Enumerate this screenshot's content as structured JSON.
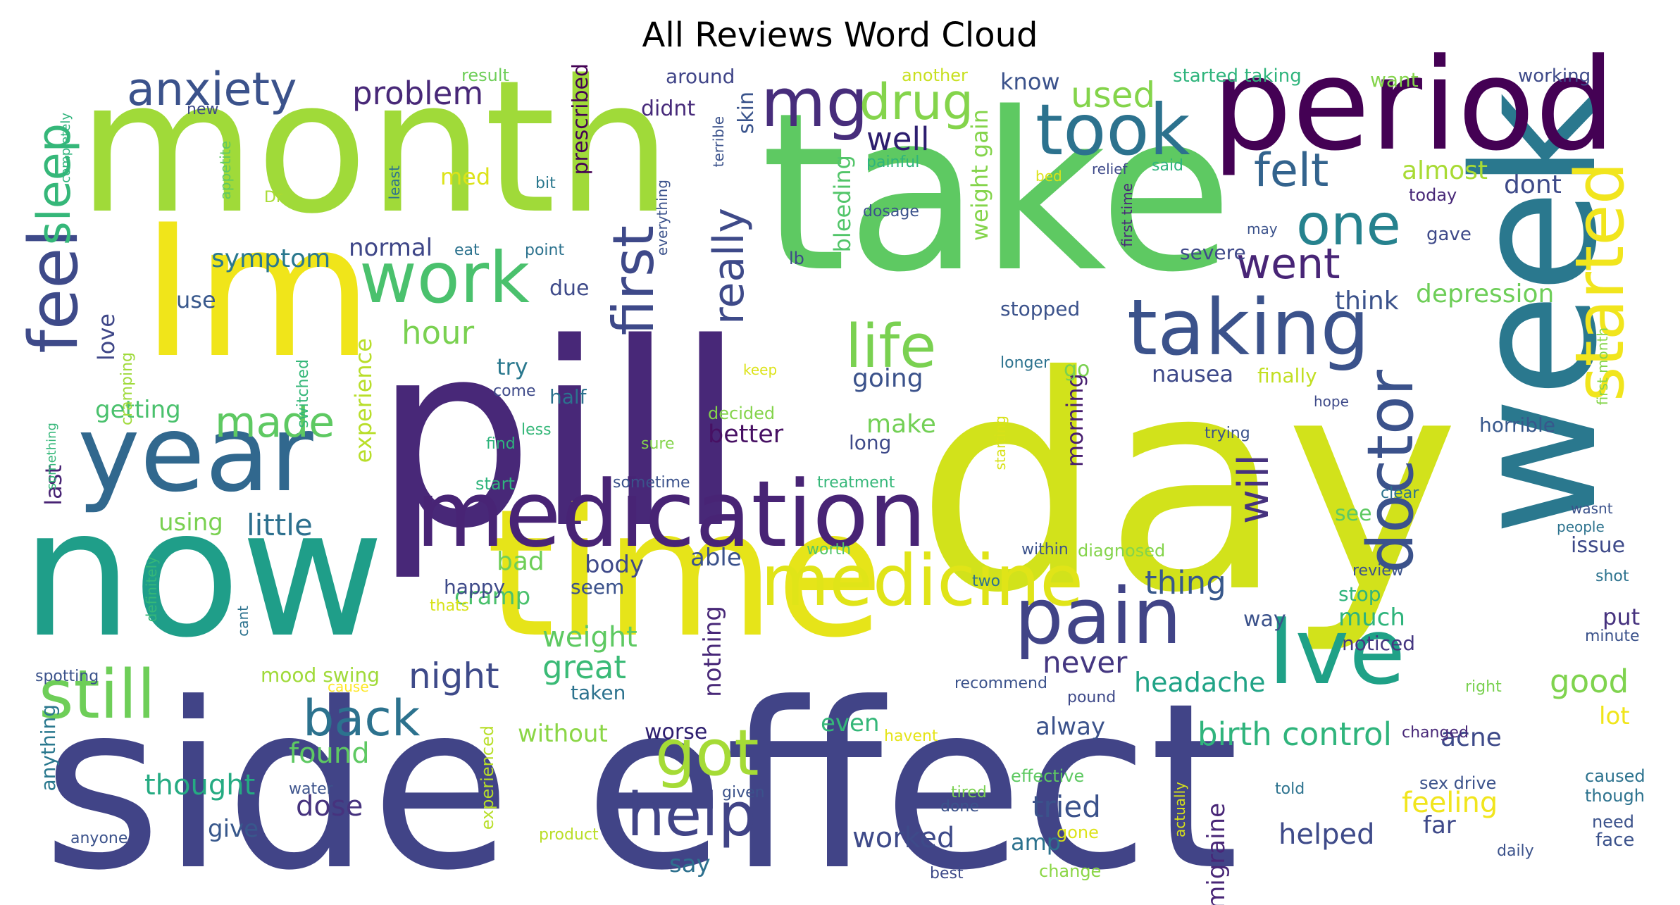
{
  "chart_data": {
    "type": "wordcloud",
    "title": "All Reviews Word Cloud",
    "words": [
      {
        "text": "side effect",
        "c": "#414487"
      },
      {
        "text": "day",
        "c": "#d2e21b"
      },
      {
        "text": "pill",
        "c": "#482878"
      },
      {
        "text": "take",
        "c": "#5ec962"
      },
      {
        "text": "month",
        "c": "#a0da39"
      },
      {
        "text": "time",
        "c": "#e6e419"
      },
      {
        "text": "now",
        "c": "#1f9e89"
      },
      {
        "text": "week",
        "c": "#2a788e"
      },
      {
        "text": "Im",
        "c": "#f0e51a"
      },
      {
        "text": "period",
        "c": "#440154"
      },
      {
        "text": "year",
        "c": "#31688e"
      },
      {
        "text": "medication",
        "c": "#482475"
      },
      {
        "text": "Ive",
        "c": "#1fa187"
      },
      {
        "text": "medicine",
        "c": "#e0e418"
      },
      {
        "text": "pain",
        "c": "#414487"
      },
      {
        "text": "taking",
        "c": "#3b528b"
      },
      {
        "text": "took",
        "c": "#2c728e"
      },
      {
        "text": "work",
        "c": "#4ac16d"
      },
      {
        "text": "still",
        "c": "#6ece58"
      },
      {
        "text": "feel",
        "c": "#3e4a89"
      },
      {
        "text": "mg",
        "c": "#472d7b"
      },
      {
        "text": "doctor",
        "c": "#3b528b"
      },
      {
        "text": "started",
        "c": "#f1e51d"
      },
      {
        "text": "help",
        "c": "#414487"
      },
      {
        "text": "got",
        "c": "#a5db36"
      },
      {
        "text": "life",
        "c": "#7ad151"
      },
      {
        "text": "one",
        "c": "#26828e"
      },
      {
        "text": "first",
        "c": "#3e4989"
      },
      {
        "text": "anxiety",
        "c": "#3b528b"
      },
      {
        "text": "drug",
        "c": "#84d44b"
      },
      {
        "text": "back",
        "c": "#2c728e"
      },
      {
        "text": "really",
        "c": "#3e4a89"
      },
      {
        "text": "felt",
        "c": "#33638d"
      },
      {
        "text": "went",
        "c": "#482576"
      },
      {
        "text": "sleep",
        "c": "#35b779"
      },
      {
        "text": "made",
        "c": "#5ec962"
      },
      {
        "text": "will",
        "c": "#46327e"
      },
      {
        "text": "night",
        "c": "#3e4a89"
      },
      {
        "text": "birth control",
        "c": "#2fb47c"
      },
      {
        "text": "problem",
        "c": "#482878"
      },
      {
        "text": "used",
        "c": "#84d44b"
      },
      {
        "text": "well",
        "c": "#2d1e6f"
      },
      {
        "text": "little",
        "c": "#2d708e"
      },
      {
        "text": "thing",
        "c": "#38588c"
      },
      {
        "text": "weight",
        "c": "#5ec962"
      },
      {
        "text": "great",
        "c": "#3aba76"
      },
      {
        "text": "never",
        "c": "#453781"
      },
      {
        "text": "dose",
        "c": "#46337e"
      },
      {
        "text": "good",
        "c": "#7fd34e"
      },
      {
        "text": "hour",
        "c": "#7ad151"
      },
      {
        "text": "found",
        "c": "#5ec962"
      },
      {
        "text": "thought",
        "c": "#25ab82"
      },
      {
        "text": "tried",
        "c": "#3b528b"
      },
      {
        "text": "worked",
        "c": "#3e4a89"
      },
      {
        "text": "helped",
        "c": "#3e4a89"
      },
      {
        "text": "feeling",
        "c": "#f1e51d"
      },
      {
        "text": "headache",
        "c": "#20a386"
      },
      {
        "text": "symptom",
        "c": "#2a788e"
      },
      {
        "text": "normal",
        "c": "#3f4788"
      },
      {
        "text": "depression",
        "c": "#6ece58"
      },
      {
        "text": "dont",
        "c": "#3e4a89"
      },
      {
        "text": "almost",
        "c": "#a8db34"
      },
      {
        "text": "think",
        "c": "#3b528b"
      },
      {
        "text": "going",
        "c": "#3b528b"
      },
      {
        "text": "make",
        "c": "#73d056"
      },
      {
        "text": "better",
        "c": "#471063"
      },
      {
        "text": "nausea",
        "c": "#3e4989"
      },
      {
        "text": "getting",
        "c": "#4ac16d"
      },
      {
        "text": "love",
        "c": "#3f4788"
      },
      {
        "text": "last",
        "c": "#482374"
      },
      {
        "text": "using",
        "c": "#7ad151"
      },
      {
        "text": "bad",
        "c": "#6ece58"
      },
      {
        "text": "body",
        "c": "#3e4989"
      },
      {
        "text": "able",
        "c": "#3b528b"
      },
      {
        "text": "cramp",
        "c": "#4ac16d"
      },
      {
        "text": "nothing",
        "c": "#482878"
      },
      {
        "text": "much",
        "c": "#2fb47c"
      },
      {
        "text": "acne",
        "c": "#3e4a89"
      },
      {
        "text": "lot",
        "c": "#f0e51a"
      },
      {
        "text": "alway",
        "c": "#3b528b"
      },
      {
        "text": "even",
        "c": "#35b779"
      },
      {
        "text": "without",
        "c": "#8bd646"
      },
      {
        "text": "give",
        "c": "#38588c"
      },
      {
        "text": "say",
        "c": "#2d708e"
      },
      {
        "text": "amp",
        "c": "#2c728e"
      },
      {
        "text": "far",
        "c": "#3e4989"
      },
      {
        "text": "migraine",
        "c": "#482677"
      },
      {
        "text": "experience",
        "c": "#b8de29"
      },
      {
        "text": "morning",
        "c": "#481f70"
      },
      {
        "text": "weight gain",
        "c": "#84d44b"
      },
      {
        "text": "bleeding",
        "c": "#52c569"
      },
      {
        "text": "prescribed",
        "c": "#440154"
      },
      {
        "text": "skin",
        "c": "#3a548c"
      },
      {
        "text": "didnt",
        "c": "#472a7a"
      },
      {
        "text": "around",
        "c": "#404588"
      },
      {
        "text": "know",
        "c": "#3b528b"
      },
      {
        "text": "med",
        "c": "#dce319"
      },
      {
        "text": "try",
        "c": "#2a788e"
      },
      {
        "text": "use",
        "c": "#38588c"
      },
      {
        "text": "due",
        "c": "#3e4a89"
      },
      {
        "text": "mood swing",
        "c": "#a0da39"
      },
      {
        "text": "worse",
        "c": "#2d1e6f"
      },
      {
        "text": "go",
        "c": "#7ad151"
      },
      {
        "text": "see",
        "c": "#5ec962"
      },
      {
        "text": "stop",
        "c": "#2fb47c"
      },
      {
        "text": "way",
        "c": "#3b528b"
      },
      {
        "text": "put",
        "c": "#46327e"
      },
      {
        "text": "issue",
        "c": "#3e4a89"
      },
      {
        "text": "horrible",
        "c": "#38588c"
      },
      {
        "text": "severe",
        "c": "#3e4989"
      },
      {
        "text": "stopped",
        "c": "#3b528b"
      },
      {
        "text": "started taking",
        "c": "#2fb47c"
      },
      {
        "text": "want",
        "c": "#84d44b"
      },
      {
        "text": "working",
        "c": "#3e4a89"
      },
      {
        "text": "long",
        "c": "#3e4a89"
      },
      {
        "text": "finally",
        "c": "#c2df23"
      },
      {
        "text": "noticed",
        "c": "#453781"
      },
      {
        "text": "happy",
        "c": "#3e4a89"
      },
      {
        "text": "seem",
        "c": "#3b528b"
      },
      {
        "text": "taken",
        "c": "#2c728e"
      },
      {
        "text": "half",
        "c": "#2c728e"
      },
      {
        "text": "decided",
        "c": "#84d44b"
      },
      {
        "text": "anything",
        "c": "#2a788e"
      },
      {
        "text": "gave",
        "c": "#3e4989"
      },
      {
        "text": "today",
        "c": "#482878"
      },
      {
        "text": "result",
        "c": "#6ece58"
      },
      {
        "text": "another",
        "c": "#c8e020"
      },
      {
        "text": "new",
        "c": "#3e4a89"
      },
      {
        "text": "bit",
        "c": "#2a788e"
      },
      {
        "text": "lb",
        "c": "#3e4989"
      },
      {
        "text": "eat",
        "c": "#2c728e"
      },
      {
        "text": "point",
        "c": "#2c728e"
      },
      {
        "text": "Dr",
        "c": "#a8db34"
      },
      {
        "text": "cramping",
        "c": "#9fda3a"
      },
      {
        "text": "switched",
        "c": "#35b779"
      },
      {
        "text": "less",
        "c": "#35b779"
      },
      {
        "text": "find",
        "c": "#2fb47c"
      },
      {
        "text": "sure",
        "c": "#84d44b"
      },
      {
        "text": "come",
        "c": "#3e4a89"
      },
      {
        "text": "start",
        "c": "#2fb47c"
      },
      {
        "text": "sometime",
        "c": "#3b528b"
      },
      {
        "text": "treatment",
        "c": "#35b779"
      },
      {
        "text": "keep",
        "c": "#dce319"
      },
      {
        "text": "within",
        "c": "#3b528b"
      },
      {
        "text": "diagnosed",
        "c": "#84d44b"
      },
      {
        "text": "worth",
        "c": "#52c569"
      },
      {
        "text": "two",
        "c": "#2c728e"
      },
      {
        "text": "thats",
        "c": "#d8e219"
      },
      {
        "text": "cause",
        "c": "#fde725"
      },
      {
        "text": "recommend",
        "c": "#3b528b"
      },
      {
        "text": "pound",
        "c": "#3e4989"
      },
      {
        "text": "effective",
        "c": "#5ec962"
      },
      {
        "text": "tired",
        "c": "#7ad151"
      },
      {
        "text": "done",
        "c": "#3b528b"
      },
      {
        "text": "given",
        "c": "#3b528b"
      },
      {
        "text": "gone",
        "c": "#dce319"
      },
      {
        "text": "change",
        "c": "#8bd646"
      },
      {
        "text": "best",
        "c": "#3e4a89"
      },
      {
        "text": "havent",
        "c": "#e5e419"
      },
      {
        "text": "water",
        "c": "#3b528b"
      },
      {
        "text": "product",
        "c": "#bade28"
      },
      {
        "text": "experienced",
        "c": "#b8de29"
      },
      {
        "text": "anyone",
        "c": "#3b528b"
      },
      {
        "text": "spotting",
        "c": "#3b528b"
      },
      {
        "text": "definitely",
        "c": "#35b779"
      },
      {
        "text": "cant",
        "c": "#2c728e"
      },
      {
        "text": "something",
        "c": "#35b779"
      },
      {
        "text": "completely",
        "c": "#2fb47c"
      },
      {
        "text": "appetite",
        "c": "#5ec962"
      },
      {
        "text": "least",
        "c": "#2c728e"
      },
      {
        "text": "everything",
        "c": "#3b528b"
      },
      {
        "text": "terrible",
        "c": "#3b528b"
      },
      {
        "text": "painful",
        "c": "#2fb47c"
      },
      {
        "text": "dosage",
        "c": "#3b528b"
      },
      {
        "text": "bed",
        "c": "#dce319"
      },
      {
        "text": "relief",
        "c": "#3e4989"
      },
      {
        "text": "said",
        "c": "#2fb47c"
      },
      {
        "text": "first time",
        "c": "#482878"
      },
      {
        "text": "may",
        "c": "#3b528b"
      },
      {
        "text": "longer",
        "c": "#2c728e"
      },
      {
        "text": "hope",
        "c": "#3e4a89"
      },
      {
        "text": "trying",
        "c": "#3b528b"
      },
      {
        "text": "starting",
        "c": "#d8e219"
      },
      {
        "text": "clear",
        "c": "#2c728e"
      },
      {
        "text": "review",
        "c": "#3b528b"
      },
      {
        "text": "wasnt",
        "c": "#3b528b"
      },
      {
        "text": "people",
        "c": "#2c728e"
      },
      {
        "text": "shot",
        "c": "#2c728e"
      },
      {
        "text": "minute",
        "c": "#3b528b"
      },
      {
        "text": "first month",
        "c": "#84d44b"
      },
      {
        "text": "right",
        "c": "#7ad151"
      },
      {
        "text": "changed",
        "c": "#482878"
      },
      {
        "text": "sex drive",
        "c": "#3b528b"
      },
      {
        "text": "caused",
        "c": "#2c728e"
      },
      {
        "text": "though",
        "c": "#2c728e"
      },
      {
        "text": "need",
        "c": "#3b528b"
      },
      {
        "text": "face",
        "c": "#3b528b"
      },
      {
        "text": "told",
        "c": "#2c728e"
      },
      {
        "text": "actually",
        "c": "#d8e219"
      },
      {
        "text": "daily",
        "c": "#3b528b"
      }
    ]
  }
}
